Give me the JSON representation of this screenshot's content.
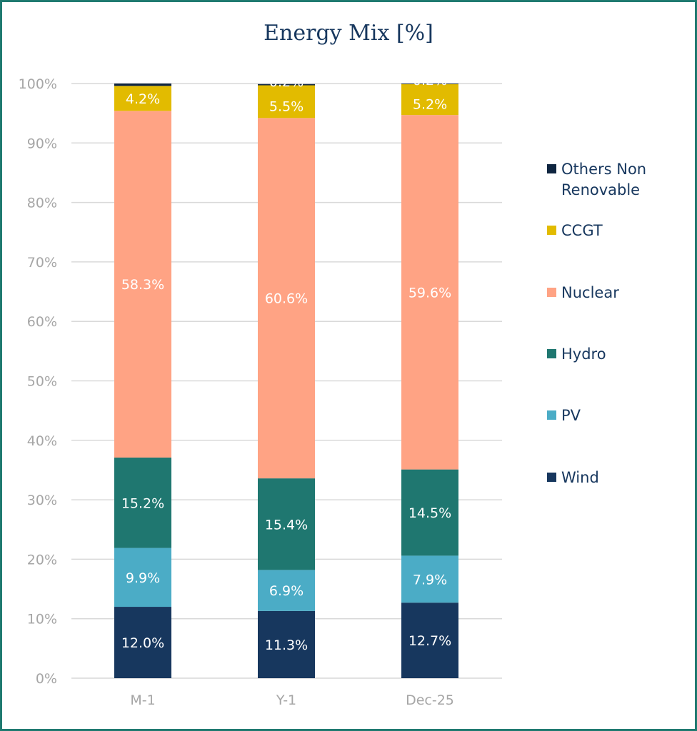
{
  "chart_data": {
    "type": "bar",
    "stacked": true,
    "title": "Energy Mix [%]",
    "xlabel": "",
    "ylabel": "",
    "ylim": [
      0,
      100
    ],
    "yticks": [
      "0%",
      "10%",
      "20%",
      "30%",
      "40%",
      "50%",
      "60%",
      "70%",
      "80%",
      "90%",
      "100%"
    ],
    "grid": true,
    "legend_position": "right",
    "categories": [
      "M-1",
      "Y-1",
      "Dec-25"
    ],
    "series": [
      {
        "name": "Wind",
        "color": "#17375e",
        "values": [
          12.0,
          11.3,
          12.7
        ],
        "labels": [
          "12.0%",
          "11.3%",
          "12.7%"
        ]
      },
      {
        "name": "PV",
        "color": "#4bacc6",
        "values": [
          9.9,
          6.9,
          7.9
        ],
        "labels": [
          "9.9%",
          "6.9%",
          "7.9%"
        ]
      },
      {
        "name": "Hydro",
        "color": "#1f7770",
        "values": [
          15.2,
          15.4,
          14.5
        ],
        "labels": [
          "15.2%",
          "15.4%",
          "14.5%"
        ]
      },
      {
        "name": "Nuclear",
        "color": "#ffa384",
        "values": [
          58.3,
          60.6,
          59.6
        ],
        "labels": [
          "58.3%",
          "60.6%",
          "59.6%"
        ]
      },
      {
        "name": "CCGT",
        "color": "#e2bb00",
        "values": [
          4.2,
          5.5,
          5.2
        ],
        "labels": [
          "4.2%",
          "5.5%",
          "5.2%"
        ]
      },
      {
        "name": "Others Non Renovable",
        "color": "#0f2540",
        "values": [
          0.4,
          0.2,
          0.2
        ],
        "labels": [
          "",
          "0.2%",
          "0.2%"
        ]
      }
    ]
  }
}
